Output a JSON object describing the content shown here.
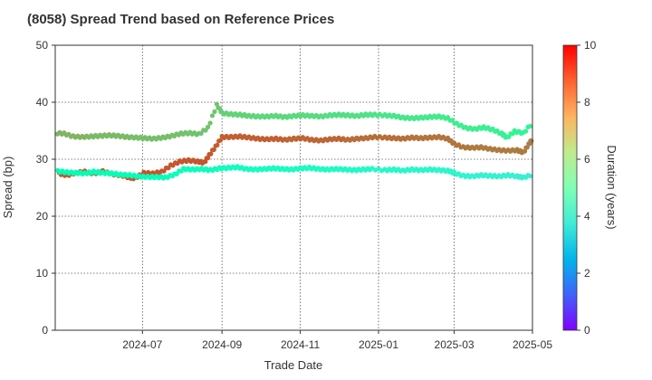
{
  "chart_data": {
    "type": "scatter",
    "title": "(8058)   Spread Trend based on Reference Prices",
    "xlabel": "Trade Date",
    "ylabel": "Spread (bp)",
    "ylim": [
      0,
      50
    ],
    "yticks": [
      0,
      10,
      20,
      30,
      40,
      50
    ],
    "xlim": [
      "2024-04-24",
      "2025-05-01"
    ],
    "xticks": [
      "2024-07-01",
      "2024-09-01",
      "2024-11-01",
      "2025-01-01",
      "2025-03-01",
      "2025-05-01"
    ],
    "xtick_labels": [
      "2024-07",
      "2024-09",
      "2024-11",
      "2025-01",
      "2025-03",
      "2025-05"
    ],
    "grid": true,
    "colorbar": {
      "label": "Duration (years)",
      "range": [
        0,
        10
      ],
      "ticks": [
        0,
        2,
        4,
        6,
        8,
        10
      ],
      "colormap": "rainbow"
    },
    "series": [
      {
        "points": [
          [
            "2024-04-24",
            34.6,
            7.5
          ],
          [
            "2024-05-01",
            34.5,
            7.5
          ],
          [
            "2024-05-08",
            34.0,
            7.5
          ],
          [
            "2024-05-15",
            33.9,
            7.5
          ],
          [
            "2024-05-22",
            34.0,
            7.4
          ],
          [
            "2024-05-29",
            34.1,
            7.4
          ],
          [
            "2024-06-05",
            34.2,
            7.4
          ],
          [
            "2024-06-12",
            34.1,
            7.4
          ],
          [
            "2024-06-19",
            33.9,
            7.4
          ],
          [
            "2024-06-26",
            33.8,
            7.3
          ],
          [
            "2024-07-03",
            33.7,
            7.3
          ],
          [
            "2024-07-10",
            33.6,
            7.3
          ],
          [
            "2024-07-17",
            33.8,
            7.3
          ],
          [
            "2024-07-24",
            34.1,
            7.3
          ],
          [
            "2024-07-31",
            34.5,
            7.3
          ],
          [
            "2024-08-07",
            34.6,
            7.2
          ],
          [
            "2024-08-14",
            34.4,
            7.2
          ],
          [
            "2024-08-21",
            35.5,
            7.2
          ],
          [
            "2024-08-28",
            39.5,
            7.2
          ],
          [
            "2024-09-01",
            38.1,
            7.0
          ],
          [
            "2024-09-08",
            37.9,
            6.9
          ],
          [
            "2024-09-15",
            37.8,
            6.9
          ],
          [
            "2024-09-22",
            37.6,
            6.9
          ],
          [
            "2024-09-29",
            37.5,
            6.8
          ],
          [
            "2024-10-06",
            37.5,
            6.8
          ],
          [
            "2024-10-13",
            37.6,
            6.8
          ],
          [
            "2024-10-20",
            37.4,
            6.8
          ],
          [
            "2024-10-27",
            37.6,
            6.7
          ],
          [
            "2024-11-03",
            37.7,
            6.7
          ],
          [
            "2024-11-10",
            37.6,
            6.7
          ],
          [
            "2024-11-17",
            37.5,
            6.7
          ],
          [
            "2024-11-24",
            37.7,
            6.6
          ],
          [
            "2024-12-01",
            37.8,
            6.6
          ],
          [
            "2024-12-08",
            37.7,
            6.6
          ],
          [
            "2024-12-15",
            37.6,
            6.6
          ],
          [
            "2024-12-22",
            37.8,
            6.5
          ],
          [
            "2024-12-29",
            37.8,
            6.5
          ],
          [
            "2025-01-06",
            37.7,
            6.4
          ],
          [
            "2025-01-13",
            37.6,
            6.4
          ],
          [
            "2025-01-20",
            37.3,
            6.4
          ],
          [
            "2025-01-27",
            37.2,
            6.4
          ],
          [
            "2025-02-03",
            37.3,
            6.3
          ],
          [
            "2025-02-10",
            37.4,
            6.3
          ],
          [
            "2025-02-17",
            37.5,
            6.3
          ],
          [
            "2025-02-24",
            37.2,
            6.3
          ],
          [
            "2025-03-03",
            36.2,
            6.2
          ],
          [
            "2025-03-10",
            35.5,
            6.2
          ],
          [
            "2025-03-17",
            35.3,
            6.2
          ],
          [
            "2025-03-24",
            35.6,
            6.1
          ],
          [
            "2025-03-31",
            35.2,
            6.1
          ],
          [
            "2025-04-07",
            34.5,
            6.1
          ],
          [
            "2025-04-11",
            33.8,
            6.0
          ],
          [
            "2025-04-17",
            34.9,
            6.0
          ],
          [
            "2025-04-24",
            34.6,
            6.0
          ],
          [
            "2025-05-01",
            36.4,
            6.0
          ]
        ]
      },
      {
        "points": [
          [
            "2024-04-27",
            27.5,
            9.0
          ],
          [
            "2024-05-03",
            27.2,
            9.0
          ],
          [
            "2024-05-10",
            27.6,
            9.0
          ],
          [
            "2024-05-17",
            27.8,
            9.0
          ],
          [
            "2024-05-24",
            27.5,
            9.0
          ],
          [
            "2024-05-31",
            27.9,
            9.0
          ],
          [
            "2024-06-07",
            27.4,
            9.0
          ],
          [
            "2024-06-14",
            27.2,
            9.0
          ],
          [
            "2024-06-21",
            26.8,
            9.0
          ],
          [
            "2024-06-25",
            26.7,
            9.0
          ],
          [
            "2024-07-02",
            27.6,
            9.0
          ],
          [
            "2024-07-09",
            27.5,
            9.0
          ],
          [
            "2024-07-16",
            27.8,
            8.9
          ],
          [
            "2024-07-23",
            28.9,
            8.9
          ],
          [
            "2024-07-30",
            29.6,
            8.9
          ],
          [
            "2024-08-06",
            29.8,
            8.9
          ],
          [
            "2024-08-13",
            29.6,
            8.9
          ],
          [
            "2024-08-18",
            29.4,
            8.9
          ],
          [
            "2024-08-22",
            30.7,
            8.9
          ],
          [
            "2024-08-27",
            32.2,
            8.8
          ],
          [
            "2024-09-01",
            33.9,
            8.8
          ],
          [
            "2024-09-08",
            33.9,
            8.8
          ],
          [
            "2024-09-15",
            34.0,
            8.8
          ],
          [
            "2024-09-22",
            33.8,
            8.8
          ],
          [
            "2024-09-29",
            33.6,
            8.8
          ],
          [
            "2024-10-06",
            33.5,
            8.8
          ],
          [
            "2024-10-13",
            33.6,
            8.8
          ],
          [
            "2024-10-20",
            33.4,
            8.7
          ],
          [
            "2024-10-27",
            33.6,
            8.7
          ],
          [
            "2024-11-03",
            33.7,
            8.7
          ],
          [
            "2024-11-10",
            33.4,
            8.7
          ],
          [
            "2024-11-17",
            33.3,
            8.7
          ],
          [
            "2024-11-24",
            33.5,
            8.7
          ],
          [
            "2024-12-01",
            33.6,
            8.7
          ],
          [
            "2024-12-08",
            33.4,
            8.6
          ],
          [
            "2024-12-15",
            33.6,
            8.6
          ],
          [
            "2024-12-22",
            33.7,
            8.6
          ],
          [
            "2024-12-29",
            33.9,
            8.6
          ],
          [
            "2025-01-06",
            33.8,
            8.6
          ],
          [
            "2025-01-13",
            33.7,
            8.6
          ],
          [
            "2025-01-20",
            33.6,
            8.6
          ],
          [
            "2025-01-27",
            33.8,
            8.5
          ],
          [
            "2025-02-03",
            33.7,
            8.5
          ],
          [
            "2025-02-10",
            33.8,
            8.5
          ],
          [
            "2025-02-17",
            33.9,
            8.5
          ],
          [
            "2025-02-24",
            33.6,
            8.5
          ],
          [
            "2025-03-01",
            32.7,
            8.5
          ],
          [
            "2025-03-08",
            32.1,
            8.5
          ],
          [
            "2025-03-15",
            32.0,
            8.4
          ],
          [
            "2025-03-22",
            32.1,
            8.4
          ],
          [
            "2025-03-29",
            31.8,
            8.4
          ],
          [
            "2025-04-05",
            31.6,
            8.4
          ],
          [
            "2025-04-12",
            31.5,
            8.4
          ],
          [
            "2025-04-19",
            31.6,
            8.4
          ],
          [
            "2025-04-24",
            31.2,
            8.4
          ],
          [
            "2025-04-28",
            32.6,
            8.3
          ],
          [
            "2025-05-01",
            33.6,
            8.3
          ]
        ]
      },
      {
        "points": [
          [
            "2024-04-26",
            27.9,
            5.0
          ],
          [
            "2024-05-03",
            27.7,
            5.0
          ],
          [
            "2024-05-10",
            27.6,
            5.0
          ],
          [
            "2024-05-17",
            27.5,
            5.0
          ],
          [
            "2024-05-24",
            27.8,
            5.0
          ],
          [
            "2024-05-31",
            27.6,
            5.0
          ],
          [
            "2024-06-07",
            27.5,
            4.9
          ],
          [
            "2024-06-14",
            27.3,
            4.9
          ],
          [
            "2024-06-21",
            27.2,
            4.9
          ],
          [
            "2024-06-28",
            27.0,
            4.9
          ],
          [
            "2024-07-05",
            26.9,
            4.9
          ],
          [
            "2024-07-12",
            26.9,
            4.9
          ],
          [
            "2024-07-19",
            26.8,
            4.9
          ],
          [
            "2024-07-26",
            27.3,
            4.8
          ],
          [
            "2024-08-02",
            28.3,
            4.8
          ],
          [
            "2024-08-09",
            28.2,
            4.8
          ],
          [
            "2024-08-16",
            28.3,
            4.8
          ],
          [
            "2024-08-23",
            28.1,
            4.8
          ],
          [
            "2024-08-30",
            28.4,
            4.7
          ],
          [
            "2024-09-06",
            28.5,
            4.7
          ],
          [
            "2024-09-13",
            28.6,
            4.7
          ],
          [
            "2024-09-20",
            28.3,
            4.7
          ],
          [
            "2024-09-27",
            28.2,
            4.6
          ],
          [
            "2024-10-04",
            28.3,
            4.6
          ],
          [
            "2024-10-11",
            28.4,
            4.6
          ],
          [
            "2024-10-18",
            28.3,
            4.6
          ],
          [
            "2024-10-25",
            28.2,
            4.5
          ],
          [
            "2024-11-01",
            28.4,
            4.5
          ],
          [
            "2024-11-08",
            28.5,
            4.5
          ],
          [
            "2024-11-15",
            28.3,
            4.5
          ],
          [
            "2024-11-22",
            28.2,
            4.4
          ],
          [
            "2024-11-29",
            28.3,
            4.4
          ],
          [
            "2024-12-06",
            28.2,
            4.4
          ],
          [
            "2024-12-13",
            28.1,
            4.4
          ],
          [
            "2024-12-20",
            28.2,
            4.3
          ],
          [
            "2024-12-27",
            28.3,
            4.3
          ],
          [
            "2025-01-06",
            28.1,
            4.3
          ],
          [
            "2025-01-13",
            28.2,
            4.3
          ],
          [
            "2025-01-20",
            28.0,
            4.2
          ],
          [
            "2025-01-27",
            28.2,
            4.2
          ],
          [
            "2025-02-03",
            28.1,
            4.2
          ],
          [
            "2025-02-10",
            28.2,
            4.2
          ],
          [
            "2025-02-17",
            28.1,
            4.1
          ],
          [
            "2025-02-24",
            28.0,
            4.1
          ],
          [
            "2025-03-01",
            27.6,
            4.1
          ],
          [
            "2025-03-08",
            27.1,
            4.1
          ],
          [
            "2025-03-15",
            27.0,
            4.0
          ],
          [
            "2025-03-22",
            27.2,
            4.0
          ],
          [
            "2025-03-29",
            27.1,
            4.0
          ],
          [
            "2025-04-05",
            27.0,
            4.0
          ],
          [
            "2025-04-12",
            27.2,
            4.0
          ],
          [
            "2025-04-19",
            27.0,
            3.9
          ],
          [
            "2025-04-24",
            26.8,
            3.9
          ],
          [
            "2025-05-01",
            27.3,
            3.9
          ]
        ]
      }
    ]
  }
}
